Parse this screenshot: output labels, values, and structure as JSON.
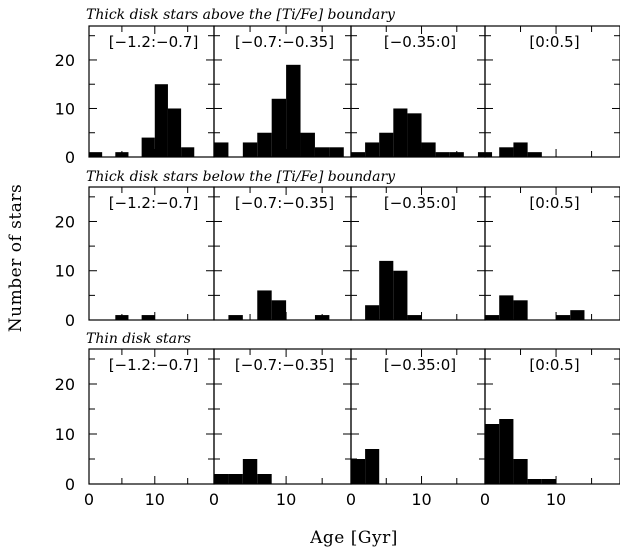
{
  "figure": {
    "ylabel": "Number of stars",
    "xlabel": "Age [Gyr]"
  },
  "chart_data": {
    "type": "bar",
    "bin_width": 2,
    "xlim": [
      0,
      19
    ],
    "ylim": [
      0,
      27
    ],
    "x_ticks": [
      0,
      10
    ],
    "y_ticks": [
      0,
      10,
      20
    ],
    "columns": [
      "[−1.2:−0.7]",
      "[−0.7:−0.35]",
      "[−0.35:0]",
      "[0:0.5]"
    ],
    "rows": [
      {
        "title": "Thick disk stars above the [Ti/Fe] boundary",
        "panels": [
          {
            "bin_starts": [
              0,
              4,
              8,
              10,
              12,
              14
            ],
            "counts": [
              1,
              1,
              4,
              15,
              10,
              2
            ]
          },
          {
            "bin_starts": [
              0,
              4,
              6,
              8,
              10,
              12,
              14,
              16
            ],
            "counts": [
              3,
              3,
              5,
              12,
              19,
              5,
              2,
              2
            ]
          },
          {
            "bin_starts": [
              0,
              2,
              4,
              6,
              8,
              10,
              12,
              14,
              18
            ],
            "counts": [
              1,
              3,
              5,
              10,
              9,
              3,
              1,
              1,
              1
            ]
          },
          {
            "bin_starts": [
              2,
              4,
              6
            ],
            "counts": [
              2,
              3,
              1
            ]
          }
        ]
      },
      {
        "title": "Thick disk stars below the [Ti/Fe] boundary",
        "panels": [
          {
            "bin_starts": [
              4,
              8
            ],
            "counts": [
              1,
              1
            ]
          },
          {
            "bin_starts": [
              2,
              6,
              8,
              14
            ],
            "counts": [
              1,
              6,
              4,
              1
            ]
          },
          {
            "bin_starts": [
              2,
              4,
              6,
              8
            ],
            "counts": [
              3,
              12,
              10,
              1
            ]
          },
          {
            "bin_starts": [
              0,
              2,
              4,
              10,
              12
            ],
            "counts": [
              1,
              5,
              4,
              1,
              2
            ]
          }
        ]
      },
      {
        "title": "Thin disk stars",
        "panels": [
          {
            "bin_starts": [],
            "counts": []
          },
          {
            "bin_starts": [
              0,
              2,
              4,
              6
            ],
            "counts": [
              2,
              2,
              5,
              2
            ]
          },
          {
            "bin_starts": [
              0,
              2
            ],
            "counts": [
              5,
              7
            ]
          },
          {
            "bin_starts": [
              0,
              2,
              4,
              6,
              8
            ],
            "counts": [
              12,
              13,
              5,
              1,
              1
            ]
          }
        ]
      }
    ]
  }
}
